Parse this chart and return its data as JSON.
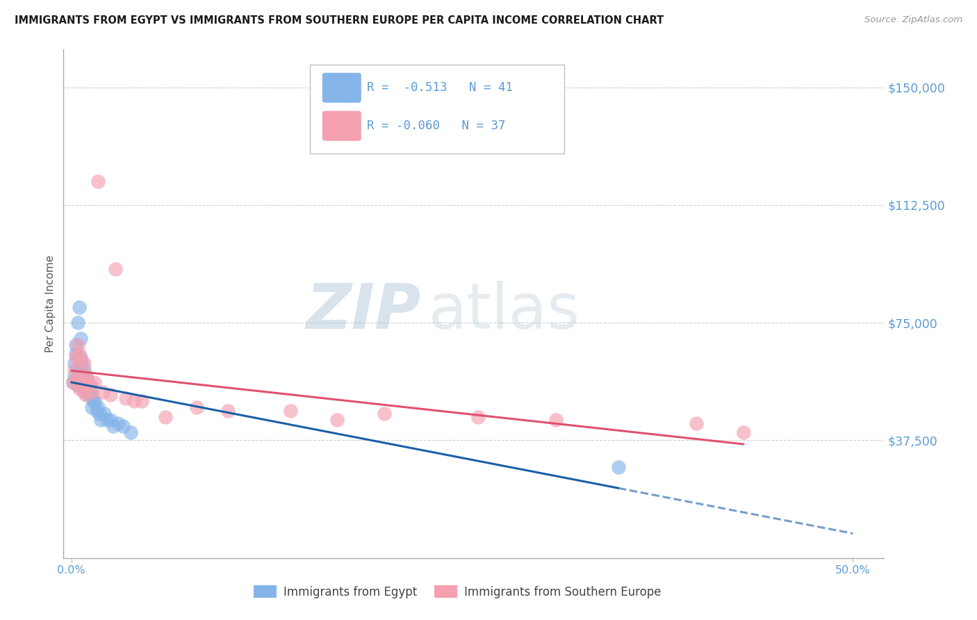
{
  "title": "IMMIGRANTS FROM EGYPT VS IMMIGRANTS FROM SOUTHERN EUROPE PER CAPITA INCOME CORRELATION CHART",
  "source": "Source: ZipAtlas.com",
  "ylabel": "Per Capita Income",
  "x_tick_positions": [
    0.0,
    0.5
  ],
  "x_tick_labels": [
    "0.0%",
    "50.0%"
  ],
  "y_ticks": [
    0,
    37500,
    75000,
    112500,
    150000
  ],
  "y_tick_labels": [
    "",
    "$37,500",
    "$75,000",
    "$112,500",
    "$150,000"
  ],
  "xlim": [
    -0.005,
    0.52
  ],
  "ylim": [
    0,
    162000
  ],
  "legend_R1": "-0.513",
  "legend_N1": "41",
  "legend_R2": "-0.060",
  "legend_N2": "37",
  "color_egypt": "#85b4e8",
  "color_south_europe": "#f4a0b0",
  "color_line_egypt": "#1a5fa8",
  "color_line_south_europe": "#e05070",
  "color_axis_label": "#5b9bd5",
  "legend_label1": "Immigrants from Egypt",
  "legend_label2": "Immigrants from Southern Europe",
  "egypt_x": [
    0.001,
    0.002,
    0.002,
    0.003,
    0.003,
    0.003,
    0.004,
    0.004,
    0.004,
    0.005,
    0.005,
    0.006,
    0.006,
    0.007,
    0.007,
    0.007,
    0.008,
    0.008,
    0.009,
    0.009,
    0.01,
    0.01,
    0.011,
    0.011,
    0.012,
    0.013,
    0.013,
    0.014,
    0.015,
    0.016,
    0.017,
    0.018,
    0.019,
    0.021,
    0.023,
    0.025,
    0.027,
    0.03,
    0.033,
    0.038,
    0.35
  ],
  "egypt_y": [
    56000,
    62000,
    58000,
    68000,
    65000,
    57000,
    75000,
    60000,
    55000,
    80000,
    56000,
    70000,
    64000,
    62000,
    58000,
    55000,
    60000,
    55000,
    58000,
    54000,
    57000,
    53000,
    56000,
    52000,
    55000,
    52000,
    48000,
    50000,
    50000,
    47000,
    48000,
    46000,
    44000,
    46000,
    44000,
    44000,
    42000,
    43000,
    42000,
    40000,
    29000
  ],
  "south_europe_x": [
    0.001,
    0.002,
    0.003,
    0.003,
    0.004,
    0.004,
    0.005,
    0.005,
    0.006,
    0.006,
    0.007,
    0.008,
    0.008,
    0.009,
    0.009,
    0.01,
    0.011,
    0.012,
    0.013,
    0.015,
    0.017,
    0.02,
    0.025,
    0.028,
    0.035,
    0.04,
    0.045,
    0.06,
    0.08,
    0.1,
    0.14,
    0.17,
    0.2,
    0.26,
    0.31,
    0.4,
    0.43
  ],
  "south_europe_y": [
    56000,
    60000,
    64000,
    57000,
    68000,
    56000,
    65000,
    54000,
    63000,
    55000,
    57000,
    62000,
    53000,
    58000,
    52000,
    57000,
    55000,
    55000,
    53000,
    56000,
    120000,
    53000,
    52000,
    92000,
    51000,
    50000,
    50000,
    45000,
    48000,
    47000,
    47000,
    44000,
    46000,
    45000,
    44000,
    43000,
    40000
  ]
}
